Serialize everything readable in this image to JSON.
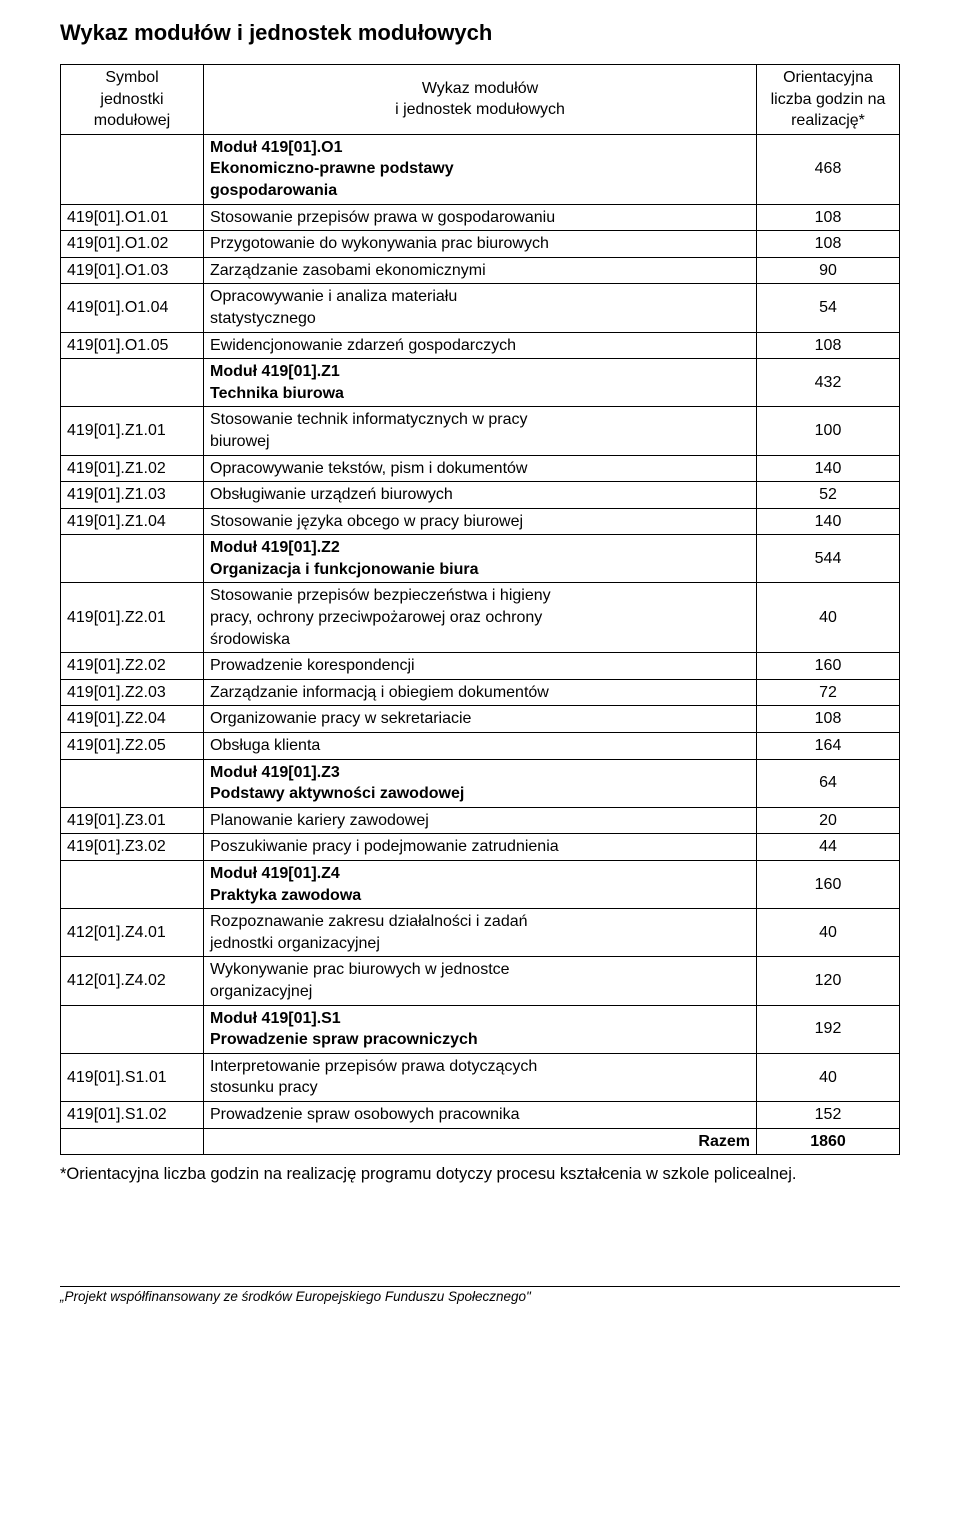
{
  "title": "Wykaz modułów i jednostek modułowych",
  "header": {
    "col1_l1": "Symbol",
    "col1_l2": "jednostki",
    "col1_l3": "modułowej",
    "col2_l1": "Wykaz modułów",
    "col2_l2": "i jednostek modułowych",
    "col3_l1": "Orientacyjna",
    "col3_l2": "liczba godzin na",
    "col3_l3": "realizację*"
  },
  "rows": [
    {
      "code": "",
      "desc_l1": "Moduł 419[01].O1",
      "desc_l2": "Ekonomiczno-prawne podstawy",
      "desc_l3": "gospodarowania",
      "hours": "468",
      "bold_desc": true,
      "bold_hours": false
    },
    {
      "code": "419[01].O1.01",
      "desc": "Stosowanie przepisów prawa w gospodarowaniu",
      "hours": "108"
    },
    {
      "code": "419[01].O1.02",
      "desc": "Przygotowanie do wykonywania prac biurowych",
      "hours": "108"
    },
    {
      "code": "419[01].O1.03",
      "desc": "Zarządzanie zasobami ekonomicznymi",
      "hours": "90"
    },
    {
      "code": "419[01].O1.04",
      "desc_l1": "Opracowywanie i analiza materiału",
      "desc_l2": "statystycznego",
      "hours": "54"
    },
    {
      "code": "419[01].O1.05",
      "desc": "Ewidencjonowanie zdarzeń gospodarczych",
      "hours": "108"
    },
    {
      "code": "",
      "desc_l1": "Moduł 419[01].Z1",
      "desc_l2": "Technika biurowa",
      "hours": "432",
      "bold_desc": true
    },
    {
      "code": "419[01].Z1.01",
      "desc_l1": "Stosowanie technik informatycznych w pracy",
      "desc_l2": "biurowej",
      "hours": "100"
    },
    {
      "code": "419[01].Z1.02",
      "desc": "Opracowywanie tekstów, pism i dokumentów",
      "hours": "140"
    },
    {
      "code": "419[01].Z1.03",
      "desc": "Obsługiwanie urządzeń biurowych",
      "hours": "52"
    },
    {
      "code": "419[01].Z1.04",
      "desc": "Stosowanie języka obcego w pracy biurowej",
      "hours": "140"
    },
    {
      "code": "",
      "desc_l1": "Moduł 419[01].Z2",
      "desc_l2": "Organizacja i funkcjonowanie biura",
      "hours": "544",
      "bold_desc": true
    },
    {
      "code": "419[01].Z2.01",
      "desc_l1": "Stosowanie przepisów bezpieczeństwa i higieny",
      "desc_l2": "pracy, ochrony przeciwpożarowej oraz ochrony",
      "desc_l3": "środowiska",
      "hours": "40"
    },
    {
      "code": "419[01].Z2.02",
      "desc": "Prowadzenie korespondencji",
      "hours": "160"
    },
    {
      "code": "419[01].Z2.03",
      "desc": "Zarządzanie informacją i obiegiem dokumentów",
      "hours": "72"
    },
    {
      "code": "419[01].Z2.04",
      "desc": "Organizowanie pracy w sekretariacie",
      "hours": "108"
    },
    {
      "code": "419[01].Z2.05",
      "desc": "Obsługa klienta",
      "hours": "164"
    },
    {
      "code": "",
      "desc_l1": "Moduł 419[01].Z3",
      "desc_l2": "Podstawy aktywności zawodowej",
      "hours": "64",
      "bold_desc": true
    },
    {
      "code": "419[01].Z3.01",
      "desc": "Planowanie kariery zawodowej",
      "hours": "20"
    },
    {
      "code": "419[01].Z3.02",
      "desc": "Poszukiwanie pracy i podejmowanie zatrudnienia",
      "hours": "44"
    },
    {
      "code": "",
      "desc_l1": "Moduł 419[01].Z4",
      "desc_l2": "Praktyka zawodowa",
      "hours": "160",
      "bold_desc": true
    },
    {
      "code": "412[01].Z4.01",
      "desc_l1": "Rozpoznawanie zakresu działalności i zadań",
      "desc_l2": "jednostki organizacyjnej",
      "hours": "40"
    },
    {
      "code": "412[01].Z4.02",
      "desc_l1": "Wykonywanie prac biurowych w jednostce",
      "desc_l2": "organizacyjnej",
      "hours": "120"
    },
    {
      "code": "",
      "desc_l1": "Moduł 419[01].S1",
      "desc_l2": "Prowadzenie spraw pracowniczych",
      "hours": "192",
      "bold_desc": true
    },
    {
      "code": "419[01].S1.01",
      "desc_l1": "Interpretowanie przepisów prawa dotyczących",
      "desc_l2": "stosunku pracy",
      "hours": "40"
    },
    {
      "code": "419[01].S1.02",
      "desc": "Prowadzenie spraw osobowych pracownika",
      "hours": "152"
    }
  ],
  "total": {
    "label": "Razem",
    "value": "1860"
  },
  "footnote": "*Orientacyjna  liczba  godzin  na  realizację  programu  dotyczy  procesu kształcenia w szkole policealnej.",
  "footer": "„Projekt współfinansowany ze środków Europejskiego Funduszu Społecznego\""
}
